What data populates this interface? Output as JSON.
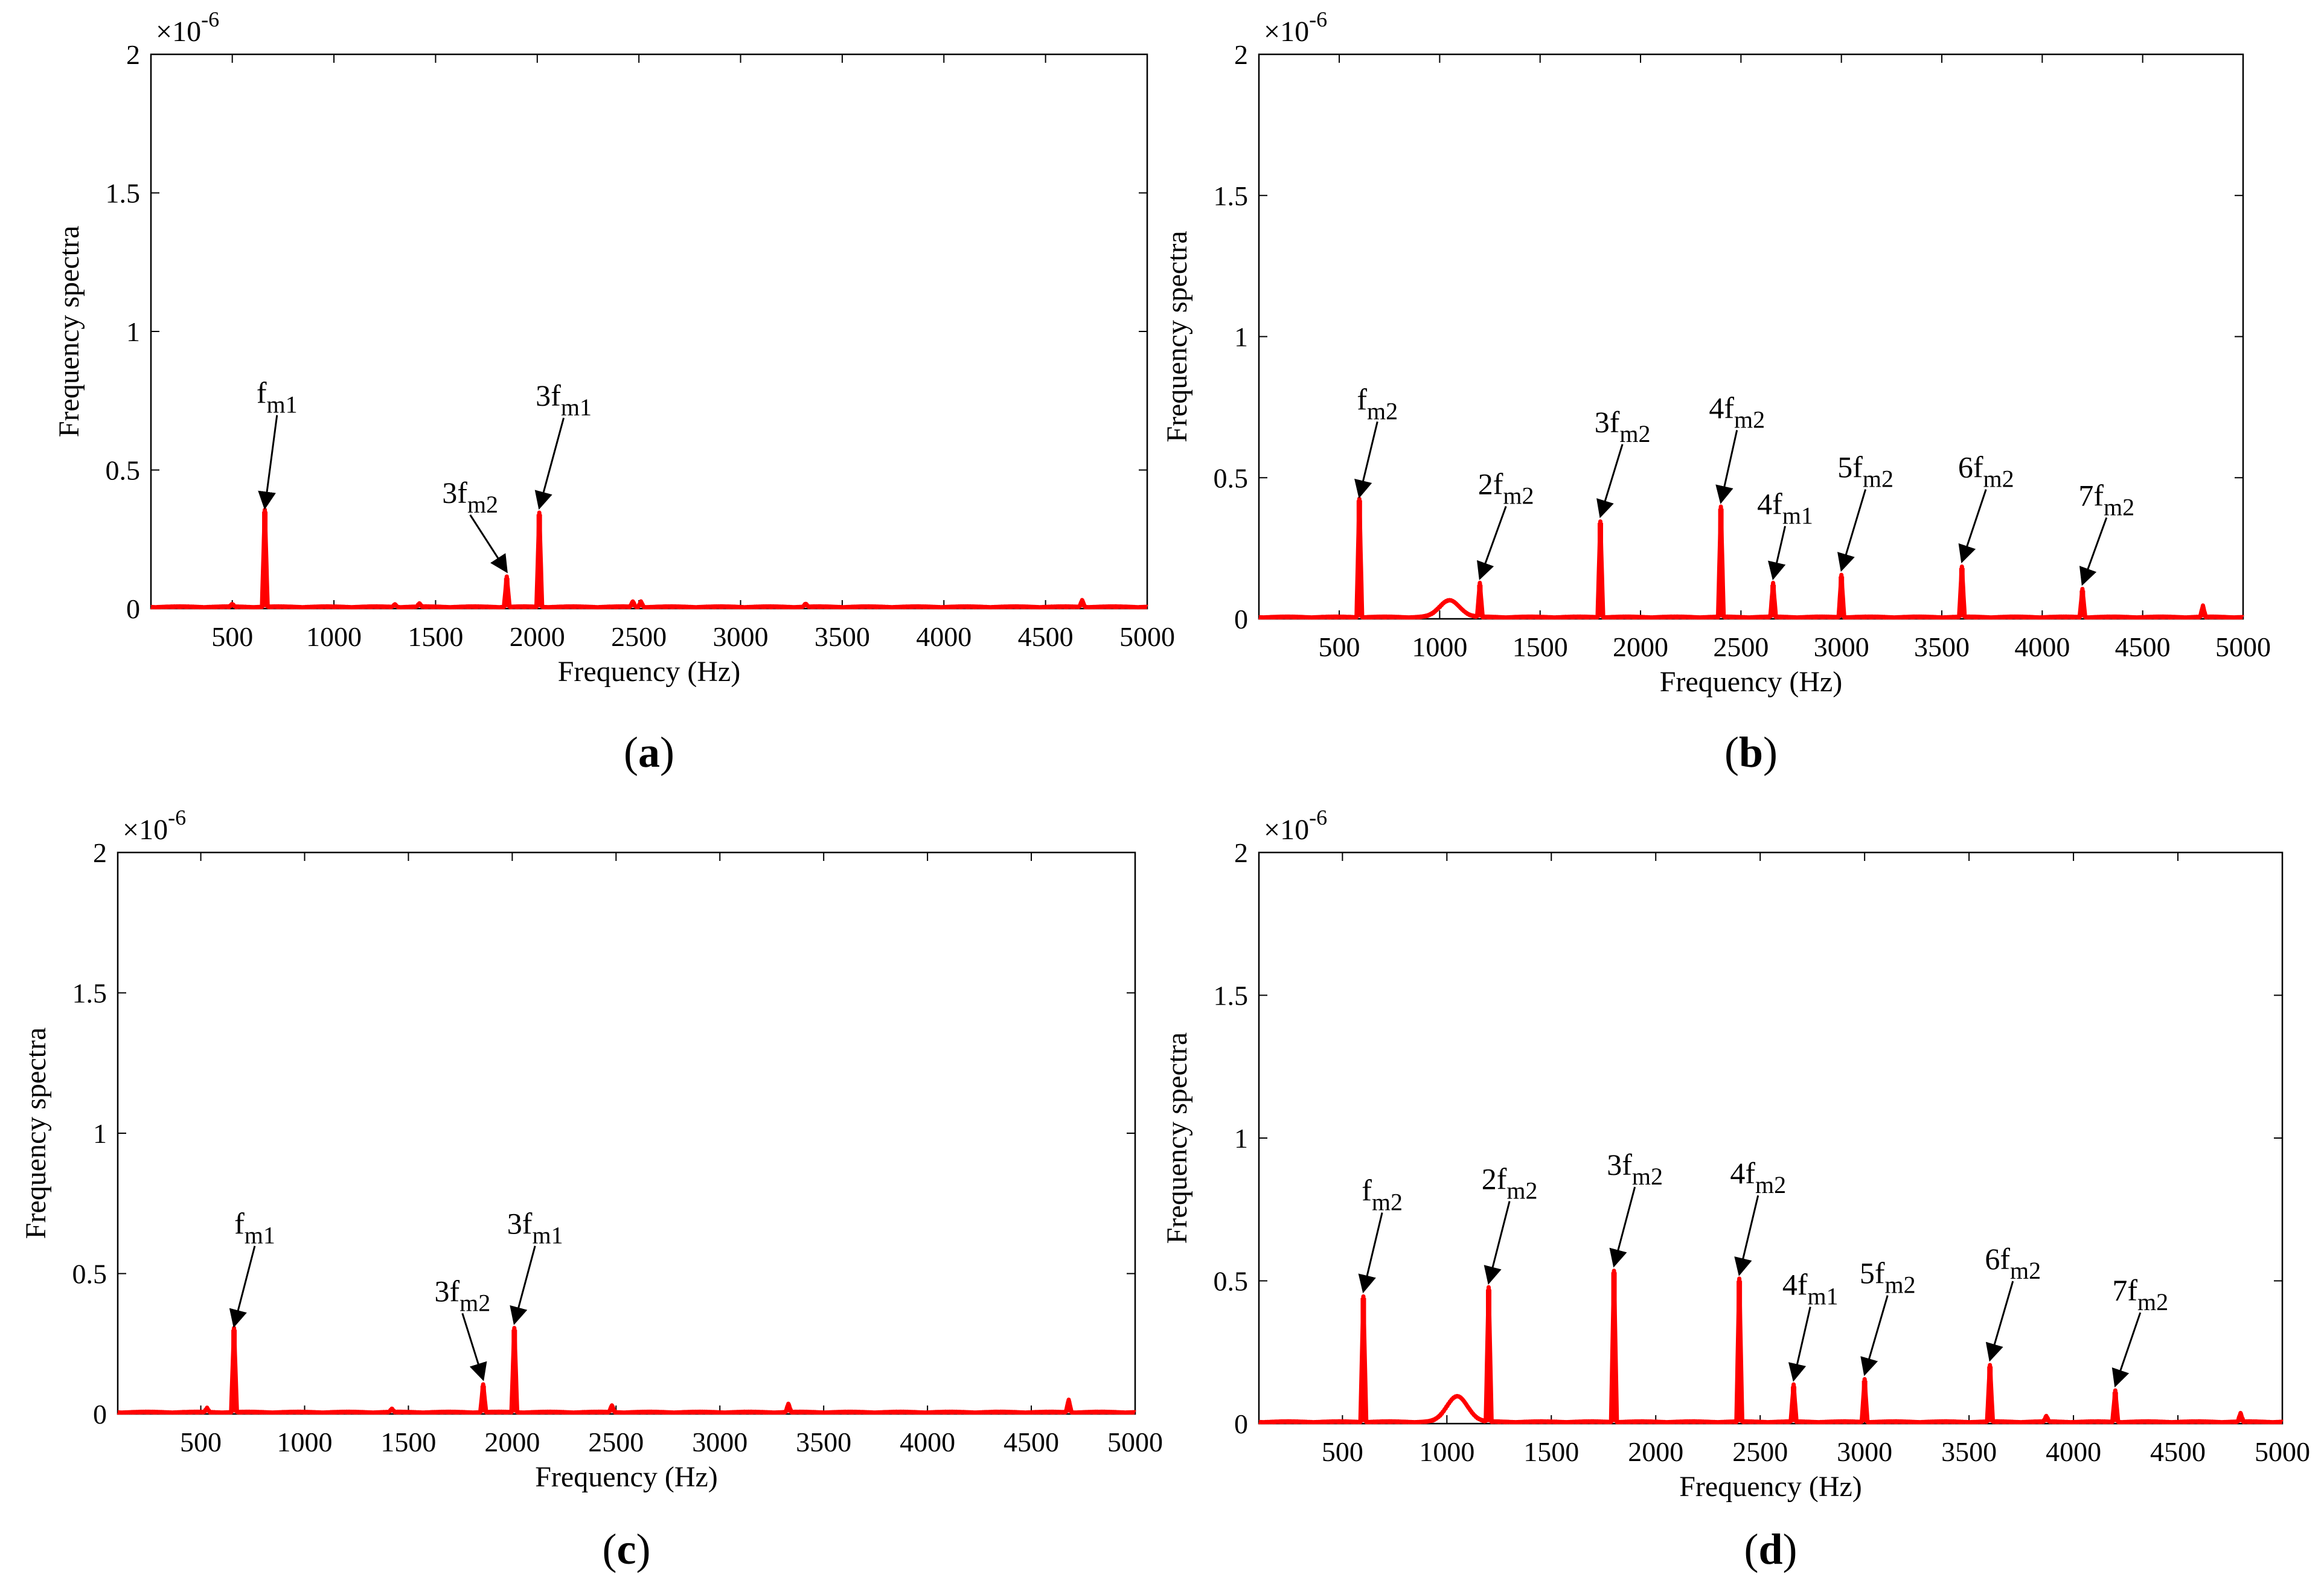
{
  "figure": {
    "colors": {
      "series": "#ff0000",
      "axis": "#000000",
      "background": "#ffffff"
    }
  },
  "chart_data": [
    {
      "id": "a",
      "panel_label": "(a)",
      "panel_letter": "a",
      "type": "line",
      "title": "",
      "xlabel": "Frequency (Hz)",
      "ylabel": "Frequency spectra",
      "scale_label": "×10",
      "scale_exponent": "-6",
      "xlim": [
        100,
        5000
      ],
      "ylim": [
        0,
        2
      ],
      "xticks": [
        500,
        1000,
        1500,
        2000,
        2500,
        3000,
        3500,
        4000,
        4500,
        5000
      ],
      "yticks": [
        0,
        0.5,
        1,
        1.5,
        2
      ],
      "ytick_labels": [
        "0",
        "0.5",
        "1",
        "1.5",
        "2"
      ],
      "baseline": 0.005,
      "bumps": [],
      "peaks": [
        {
          "f": 500,
          "v": 0.01
        },
        {
          "f": 660,
          "v": 0.35
        },
        {
          "f": 1300,
          "v": 0.01
        },
        {
          "f": 1420,
          "v": 0.012
        },
        {
          "f": 1850,
          "v": 0.11
        },
        {
          "f": 2010,
          "v": 0.34
        },
        {
          "f": 2470,
          "v": 0.02
        },
        {
          "f": 2510,
          "v": 0.02
        },
        {
          "f": 3320,
          "v": 0.012
        },
        {
          "f": 4680,
          "v": 0.025
        }
      ],
      "annotations": [
        {
          "label": "f",
          "sub": "m1",
          "f": 660,
          "v": 0.35,
          "tx": 720,
          "ty": 0.72
        },
        {
          "label": "3f",
          "sub": "m2",
          "f": 1850,
          "v": 0.12,
          "tx": 1670,
          "ty": 0.36
        },
        {
          "label": "3f",
          "sub": "m1",
          "f": 2010,
          "v": 0.35,
          "tx": 2130,
          "ty": 0.71
        }
      ]
    },
    {
      "id": "b",
      "panel_label": "(b)",
      "panel_letter": "b",
      "type": "line",
      "title": "",
      "xlabel": "Frequency (Hz)",
      "ylabel": "Frequency spectra",
      "scale_label": "×10",
      "scale_exponent": "-6",
      "xlim": [
        100,
        5000
      ],
      "ylim": [
        0,
        2
      ],
      "xticks": [
        500,
        1000,
        1500,
        2000,
        2500,
        3000,
        3500,
        4000,
        4500,
        5000
      ],
      "yticks": [
        0,
        0.5,
        1,
        1.5,
        2
      ],
      "ytick_labels": [
        "0",
        "0.5",
        "1",
        "1.5",
        "2"
      ],
      "baseline": 0.005,
      "bumps": [
        {
          "f": 1050,
          "v": 0.06,
          "w": 70
        }
      ],
      "peaks": [
        {
          "f": 600,
          "v": 0.42
        },
        {
          "f": 1200,
          "v": 0.12
        },
        {
          "f": 1800,
          "v": 0.34
        },
        {
          "f": 2400,
          "v": 0.39
        },
        {
          "f": 2660,
          "v": 0.12
        },
        {
          "f": 3000,
          "v": 0.15
        },
        {
          "f": 3600,
          "v": 0.18
        },
        {
          "f": 4200,
          "v": 0.1
        },
        {
          "f": 4800,
          "v": 0.04
        }
      ],
      "annotations": [
        {
          "label": "f",
          "sub": "m2",
          "f": 600,
          "v": 0.42,
          "tx": 690,
          "ty": 0.72
        },
        {
          "label": "2f",
          "sub": "m2",
          "f": 1200,
          "v": 0.13,
          "tx": 1330,
          "ty": 0.42
        },
        {
          "label": "3f",
          "sub": "m2",
          "f": 1800,
          "v": 0.35,
          "tx": 1910,
          "ty": 0.64
        },
        {
          "label": "4f",
          "sub": "m2",
          "f": 2400,
          "v": 0.4,
          "tx": 2480,
          "ty": 0.69
        },
        {
          "label": "4f",
          "sub": "m1",
          "f": 2660,
          "v": 0.13,
          "tx": 2720,
          "ty": 0.35
        },
        {
          "label": "5f",
          "sub": "m2",
          "f": 3000,
          "v": 0.16,
          "tx": 3120,
          "ty": 0.48
        },
        {
          "label": "6f",
          "sub": "m2",
          "f": 3600,
          "v": 0.19,
          "tx": 3720,
          "ty": 0.48
        },
        {
          "label": "7f",
          "sub": "m2",
          "f": 4200,
          "v": 0.11,
          "tx": 4320,
          "ty": 0.38
        }
      ]
    },
    {
      "id": "c",
      "panel_label": "(c)",
      "panel_letter": "c",
      "type": "line",
      "title": "",
      "xlabel": "Frequency (Hz)",
      "ylabel": "Frequency spectra",
      "scale_label": "×10",
      "scale_exponent": "-6",
      "xlim": [
        100,
        5000
      ],
      "ylim": [
        0,
        2
      ],
      "xticks": [
        500,
        1000,
        1500,
        2000,
        2500,
        3000,
        3500,
        4000,
        4500,
        5000
      ],
      "yticks": [
        0,
        0.5,
        1,
        1.5,
        2
      ],
      "ytick_labels": [
        "0",
        "0.5",
        "1",
        "1.5",
        "2"
      ],
      "baseline": 0.005,
      "bumps": [],
      "peaks": [
        {
          "f": 530,
          "v": 0.015
        },
        {
          "f": 660,
          "v": 0.3
        },
        {
          "f": 1420,
          "v": 0.012
        },
        {
          "f": 1860,
          "v": 0.1
        },
        {
          "f": 2010,
          "v": 0.3
        },
        {
          "f": 2480,
          "v": 0.025
        },
        {
          "f": 3330,
          "v": 0.03
        },
        {
          "f": 4680,
          "v": 0.045
        }
      ],
      "annotations": [
        {
          "label": "f",
          "sub": "m1",
          "f": 660,
          "v": 0.3,
          "tx": 760,
          "ty": 0.62
        },
        {
          "label": "3f",
          "sub": "m2",
          "f": 1860,
          "v": 0.11,
          "tx": 1760,
          "ty": 0.38
        },
        {
          "label": "3f",
          "sub": "m1",
          "f": 2010,
          "v": 0.31,
          "tx": 2110,
          "ty": 0.62
        }
      ]
    },
    {
      "id": "d",
      "panel_label": "(d)",
      "panel_letter": "d",
      "type": "line",
      "title": "",
      "xlabel": "Frequency (Hz)",
      "ylabel": "Frequency spectra",
      "scale_label": "×10",
      "scale_exponent": "-6",
      "xlim": [
        100,
        5000
      ],
      "ylim": [
        0,
        2
      ],
      "xticks": [
        500,
        1000,
        1500,
        2000,
        2500,
        3000,
        3500,
        4000,
        4500,
        5000
      ],
      "yticks": [
        0,
        0.5,
        1,
        1.5,
        2
      ],
      "ytick_labels": [
        "0",
        "0.5",
        "1",
        "1.5",
        "2"
      ],
      "baseline": 0.005,
      "bumps": [
        {
          "f": 1050,
          "v": 0.09,
          "w": 70
        }
      ],
      "peaks": [
        {
          "f": 600,
          "v": 0.44
        },
        {
          "f": 1200,
          "v": 0.47
        },
        {
          "f": 1800,
          "v": 0.53
        },
        {
          "f": 2400,
          "v": 0.5
        },
        {
          "f": 2660,
          "v": 0.13
        },
        {
          "f": 3000,
          "v": 0.15
        },
        {
          "f": 3600,
          "v": 0.2
        },
        {
          "f": 3870,
          "v": 0.02
        },
        {
          "f": 4200,
          "v": 0.11
        },
        {
          "f": 4800,
          "v": 0.03
        }
      ],
      "annotations": [
        {
          "label": "f",
          "sub": "m2",
          "f": 600,
          "v": 0.45,
          "tx": 690,
          "ty": 0.76
        },
        {
          "label": "2f",
          "sub": "m2",
          "f": 1200,
          "v": 0.48,
          "tx": 1300,
          "ty": 0.8
        },
        {
          "label": "3f",
          "sub": "m2",
          "f": 1800,
          "v": 0.54,
          "tx": 1900,
          "ty": 0.85
        },
        {
          "label": "4f",
          "sub": "m2",
          "f": 2400,
          "v": 0.51,
          "tx": 2490,
          "ty": 0.82
        },
        {
          "label": "4f",
          "sub": "m1",
          "f": 2660,
          "v": 0.14,
          "tx": 2740,
          "ty": 0.43
        },
        {
          "label": "5f",
          "sub": "m2",
          "f": 3000,
          "v": 0.16,
          "tx": 3110,
          "ty": 0.47
        },
        {
          "label": "6f",
          "sub": "m2",
          "f": 3600,
          "v": 0.21,
          "tx": 3710,
          "ty": 0.52
        },
        {
          "label": "7f",
          "sub": "m2",
          "f": 4200,
          "v": 0.12,
          "tx": 4320,
          "ty": 0.41
        }
      ]
    }
  ]
}
